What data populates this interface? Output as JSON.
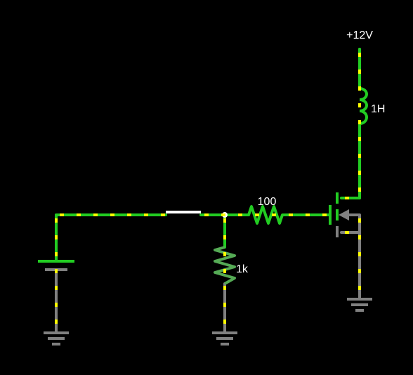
{
  "circuit": {
    "supply_label": "+12V",
    "inductor_label": "1H",
    "gate_resistor_label": "100",
    "pulldown_resistor_label": "1k"
  },
  "colors": {
    "background": "#000000",
    "live_wire": "#22cc22",
    "ground_wire": "#808080",
    "current_dot": "#ffff00",
    "switch": "#ffffff",
    "text": "#ffffff"
  },
  "icons": [
    "ground-icon",
    "battery-icon",
    "switch-icon",
    "resistor-icon",
    "inductor-icon",
    "mosfet-icon",
    "voltage-source-icon"
  ]
}
